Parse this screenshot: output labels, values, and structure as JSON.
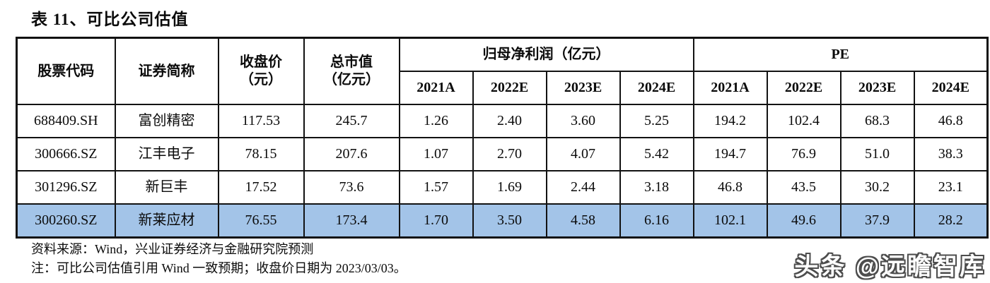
{
  "title": "表 11、可比公司估值",
  "table": {
    "headers": {
      "stock_code": "股票代码",
      "security_name": "证券简称",
      "close_price_line1": "收盘价",
      "close_price_line2": "（元）",
      "market_cap_line1": "总市值",
      "market_cap_line2": "（亿元）",
      "net_profit_group": "归母净利润（亿元）",
      "pe_group": "PE",
      "years": [
        "2021A",
        "2022E",
        "2023E",
        "2024E"
      ]
    },
    "highlight_color": "#a3c4e8",
    "rows": [
      {
        "code": "688409.SH",
        "name": "富创精密",
        "close": "117.53",
        "mcap": "245.7",
        "np": [
          "1.26",
          "2.40",
          "3.60",
          "5.25"
        ],
        "pe": [
          "194.2",
          "102.4",
          "68.3",
          "46.8"
        ],
        "highlight": false
      },
      {
        "code": "300666.SZ",
        "name": "江丰电子",
        "close": "78.15",
        "mcap": "207.6",
        "np": [
          "1.07",
          "2.70",
          "4.07",
          "5.42"
        ],
        "pe": [
          "194.7",
          "76.9",
          "51.0",
          "38.3"
        ],
        "highlight": false
      },
      {
        "code": "301296.SZ",
        "name": "新巨丰",
        "close": "17.52",
        "mcap": "73.6",
        "np": [
          "1.57",
          "1.69",
          "2.44",
          "3.18"
        ],
        "pe": [
          "46.8",
          "43.5",
          "30.2",
          "23.1"
        ],
        "highlight": false
      },
      {
        "code": "300260.SZ",
        "name": "新莱应材",
        "close": "76.55",
        "mcap": "173.4",
        "np": [
          "1.70",
          "3.50",
          "4.58",
          "6.16"
        ],
        "pe": [
          "102.1",
          "49.6",
          "37.9",
          "28.2"
        ],
        "highlight": true
      }
    ]
  },
  "footnotes": {
    "source": "资料来源：Wind，兴业证券经济与金融研究院预测",
    "note": "注：可比公司估值引用 Wind 一致预期；收盘价日期为 2023/03/03。"
  },
  "watermark": "头条 @远瞻智库"
}
